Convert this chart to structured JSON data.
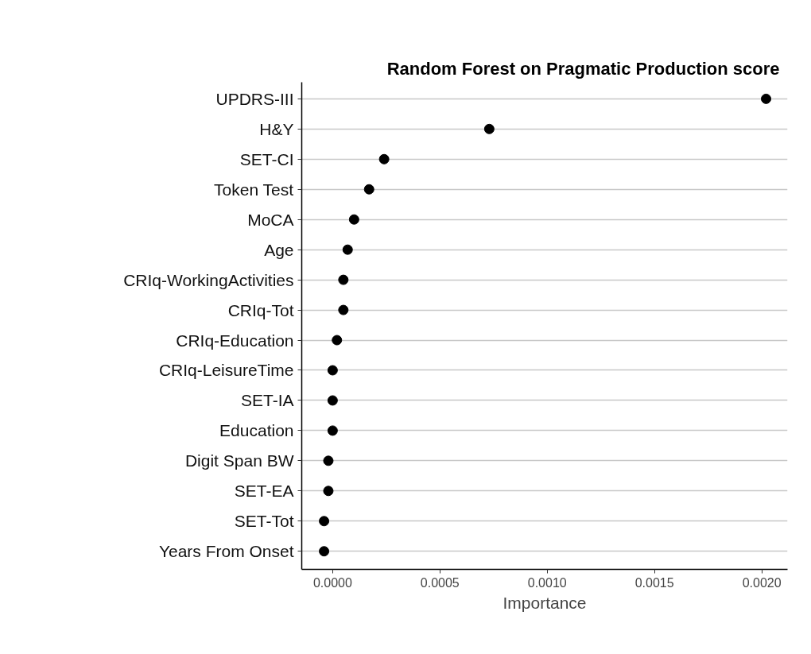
{
  "chart_data": {
    "type": "scatter",
    "title": "Random Forest on Pragmatic Production score",
    "xlabel": "Importance",
    "categories": [
      "UPDRS-III",
      "H&Y",
      "SET-CI",
      "Token Test",
      "MoCA",
      "Age",
      "CRIq-WorkingActivities",
      "CRIq-Tot",
      "CRIq-Education",
      "CRIq-LeisureTime",
      "SET-IA",
      "Education",
      "Digit Span BW",
      "SET-EA",
      "SET-Tot",
      "Years From Onset"
    ],
    "orientation": "horizontal",
    "values": [
      0.00202,
      0.00073,
      0.00024,
      0.00017,
      0.0001,
      7e-05,
      5e-05,
      5e-05,
      2e-05,
      0.0,
      0.0,
      0.0,
      -2e-05,
      -2e-05,
      -4e-05,
      -4e-05
    ],
    "color": "#000000",
    "marker": "circle",
    "xlim": [
      -0.000144,
      0.00212
    ],
    "xticks": [
      {
        "value": 0,
        "label": "0.0000"
      },
      {
        "value": 0.0005,
        "label": "0.0005"
      },
      {
        "value": 0.001,
        "label": "0.0010"
      },
      {
        "value": 0.0015,
        "label": "0.0015"
      },
      {
        "value": 0.002,
        "label": "0.0020"
      }
    ],
    "grid": "y"
  }
}
